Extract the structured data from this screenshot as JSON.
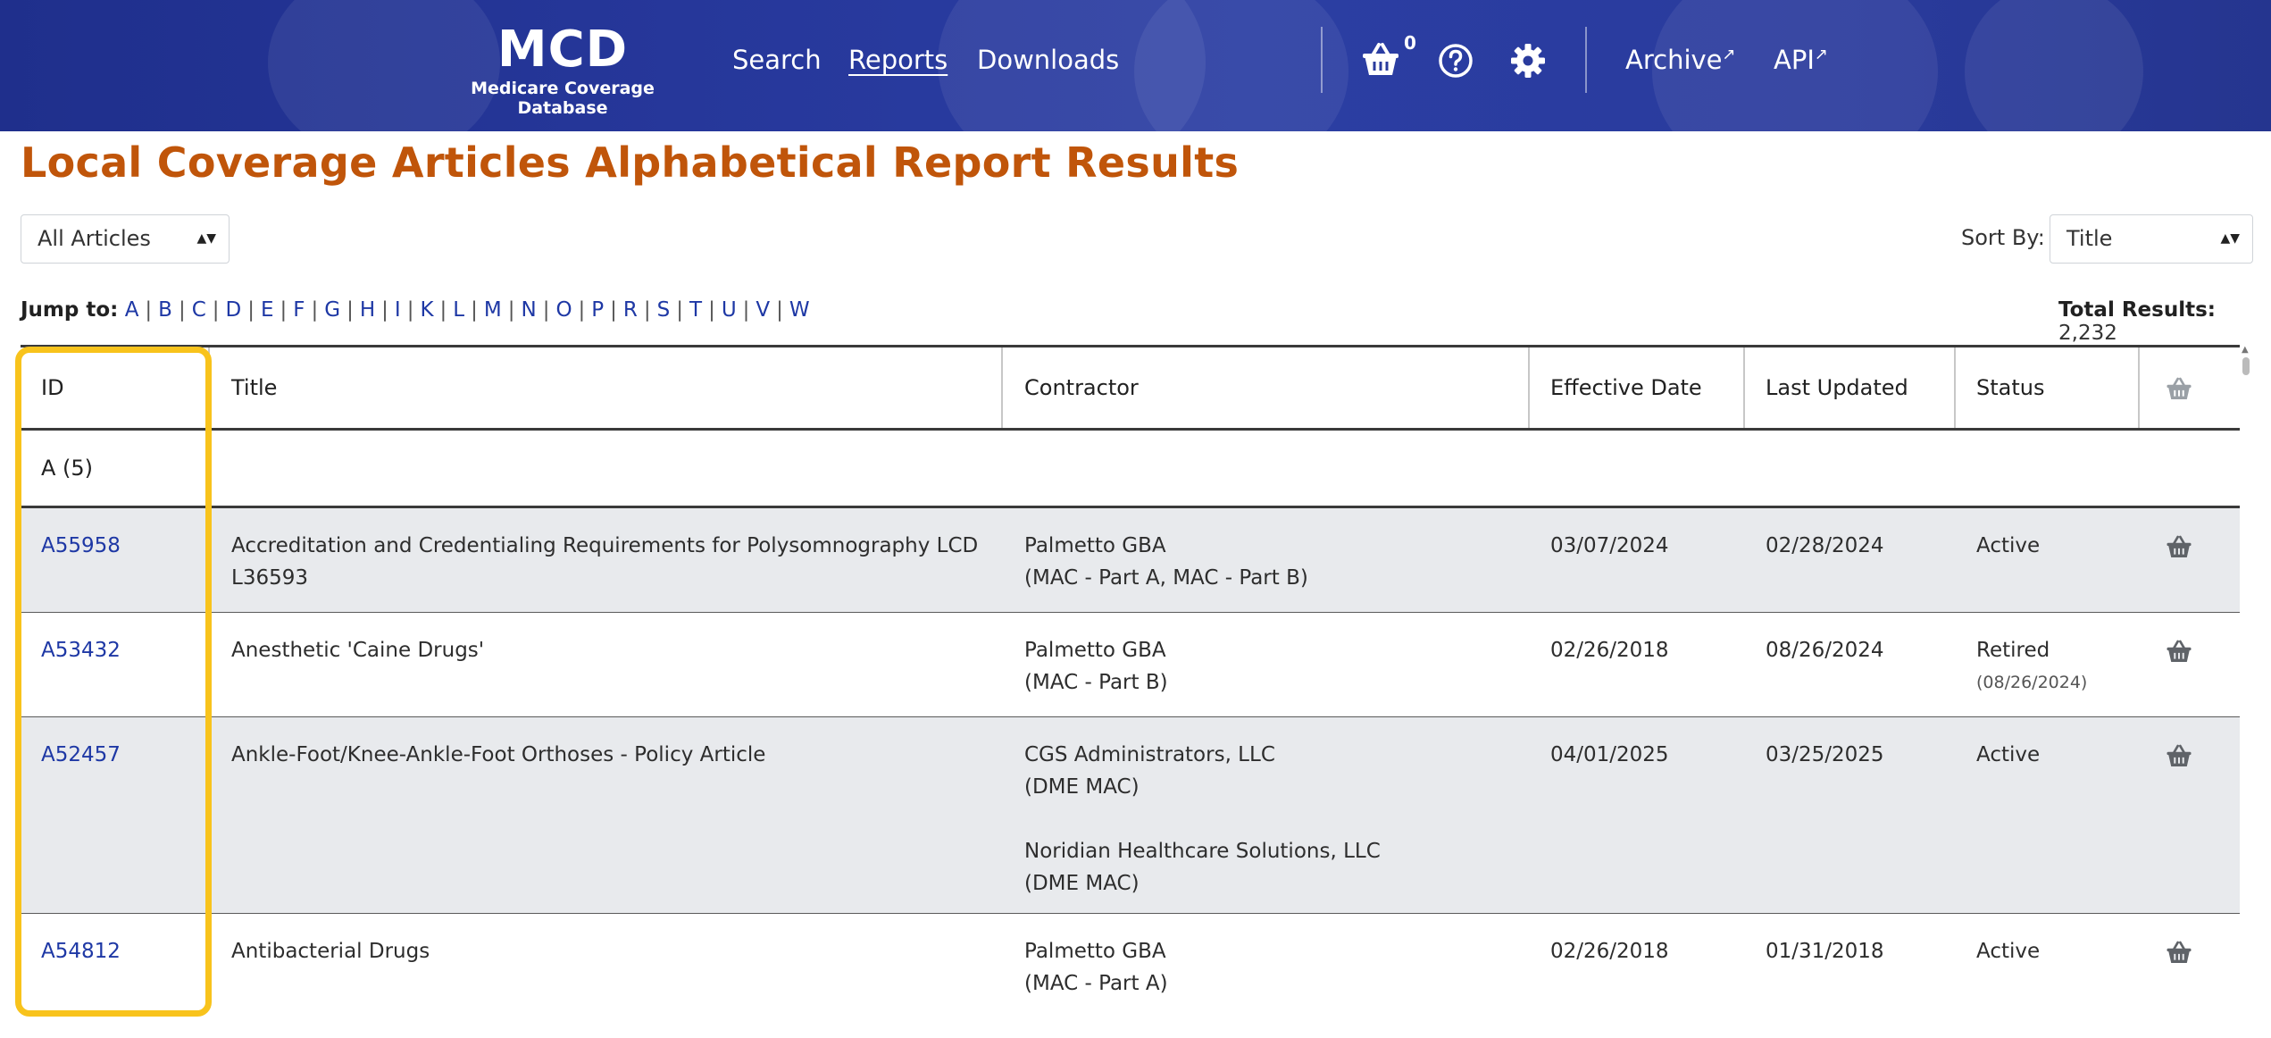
{
  "header": {
    "logo": "MCD",
    "logo_subtitle": "Medicare Coverage Database",
    "nav": [
      "Search",
      "Reports",
      "Downloads"
    ],
    "active_nav": "Reports",
    "basket_count": "0",
    "archive_label": "Archive",
    "api_label": "API",
    "icons": [
      "basket-icon",
      "help-circle-icon",
      "gear-icon",
      "external-link-icon"
    ]
  },
  "page": {
    "title": "Local Coverage Articles Alphabetical Report Results",
    "filter_value": "All Articles",
    "sort_label": "Sort By:",
    "sort_value": "Title",
    "jump_label": "Jump to:",
    "letters": [
      "A",
      "B",
      "C",
      "D",
      "E",
      "F",
      "G",
      "H",
      "I",
      "K",
      "L",
      "M",
      "N",
      "O",
      "P",
      "R",
      "S",
      "T",
      "U",
      "V",
      "W"
    ],
    "total_label": "Total Results:",
    "total_value": "2,232"
  },
  "table": {
    "headers": [
      "ID",
      "Title",
      "Contractor",
      "Effective Date",
      "Last Updated",
      "Status"
    ],
    "group_label": "A (5)",
    "rows": [
      {
        "id": "A55958",
        "title": "Accreditation and Credentialing Requirements for Polysomnography LCD L36593",
        "contractor": [
          "Palmetto GBA",
          "(MAC - Part A, MAC - Part B)"
        ],
        "effective": "03/07/2024",
        "updated": "02/28/2024",
        "status": "Active",
        "status_note": ""
      },
      {
        "id": "A53432",
        "title": "Anesthetic 'Caine Drugs'",
        "contractor": [
          "Palmetto GBA",
          "(MAC - Part B)"
        ],
        "effective": "02/26/2018",
        "updated": "08/26/2024",
        "status": "Retired",
        "status_note": "(08/26/2024)"
      },
      {
        "id": "A52457",
        "title": "Ankle-Foot/Knee-Ankle-Foot Orthoses - Policy Article",
        "contractor": [
          "CGS Administrators, LLC",
          "(DME MAC)",
          "",
          "Noridian Healthcare Solutions, LLC",
          "(DME MAC)"
        ],
        "effective": "04/01/2025",
        "updated": "03/25/2025",
        "status": "Active",
        "status_note": ""
      },
      {
        "id": "A54812",
        "title": "Antibacterial Drugs",
        "contractor": [
          "Palmetto GBA",
          "(MAC - Part A)"
        ],
        "effective": "02/26/2018",
        "updated": "01/31/2018",
        "status": "Active",
        "status_note": ""
      }
    ]
  },
  "colors": {
    "header_bg": "#2a3b9d",
    "title": "#c0550a",
    "link": "#1e38a5",
    "row_alt": "#e8eaed",
    "highlight": "#f8c31c"
  }
}
